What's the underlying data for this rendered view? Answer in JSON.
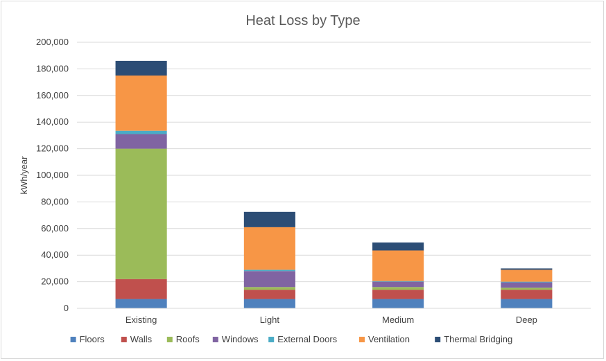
{
  "chart_data": {
    "type": "bar",
    "stacked": true,
    "title": "Heat Loss by Type",
    "ylabel": "kWh/year",
    "xlabel": "",
    "ylim": [
      0,
      200000
    ],
    "yticks": [
      0,
      20000,
      40000,
      60000,
      80000,
      100000,
      120000,
      140000,
      160000,
      180000,
      200000
    ],
    "ytick_labels": [
      "0",
      "20,000",
      "40,000",
      "60,000",
      "80,000",
      "100,000",
      "120,000",
      "140,000",
      "160,000",
      "180,000",
      "200,000"
    ],
    "grid": true,
    "legend_position": "bottom",
    "categories": [
      "Existing",
      "Light",
      "Medium",
      "Deep"
    ],
    "series": [
      {
        "name": "Floors",
        "color": "#4f81bd",
        "values": [
          7000,
          7000,
          7000,
          7000
        ]
      },
      {
        "name": "Walls",
        "color": "#c0504d",
        "values": [
          15000,
          7000,
          7000,
          7000
        ]
      },
      {
        "name": "Roofs",
        "color": "#9bbb59",
        "values": [
          98000,
          2000,
          2000,
          1500
        ]
      },
      {
        "name": "Windows",
        "color": "#8064a2",
        "values": [
          11000,
          12000,
          4000,
          4000
        ]
      },
      {
        "name": "External Doors",
        "color": "#4bacc6",
        "values": [
          2500,
          1000,
          500,
          500
        ]
      },
      {
        "name": "Ventilation",
        "color": "#f79646",
        "values": [
          41500,
          32000,
          23000,
          9000
        ]
      },
      {
        "name": "Thermal Bridging",
        "color": "#2c4d75",
        "values": [
          11000,
          11500,
          6000,
          1000
        ]
      }
    ]
  }
}
